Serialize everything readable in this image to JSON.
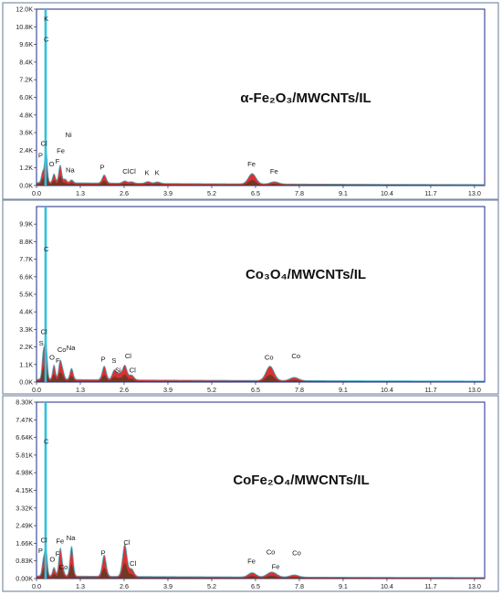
{
  "chart_data": [
    {
      "type": "area",
      "title": "α-Fe₂O₃/MWCNTs/IL",
      "xlim": [
        0,
        13.3
      ],
      "ylim": [
        0,
        12000
      ],
      "x_ticks": [
        0.0,
        1.3,
        2.6,
        3.9,
        5.2,
        6.5,
        7.8,
        9.1,
        10.4,
        11.7,
        13.0
      ],
      "x_tick_labels": [
        "0.0",
        "1.3",
        "2.6",
        "3.9",
        "5.2",
        "6.5",
        "7.8",
        "9.1",
        "10.4",
        "11.7",
        "13.0"
      ],
      "y_ticks": [
        0,
        1200,
        2400,
        3600,
        4800,
        6000,
        7200,
        8400,
        9600,
        10800,
        12000
      ],
      "y_tick_labels": [
        "0.0K",
        "1.2K",
        "2.4K",
        "3.6K",
        "4.8K",
        "6.0K",
        "7.2K",
        "8.4K",
        "9.6K",
        "10.8K",
        "12.0K"
      ],
      "baseline": 180,
      "background_peak": {
        "x": 0.27,
        "height": 12000
      },
      "peaks": [
        {
          "x": 0.18,
          "h": 700,
          "label": "P",
          "lx": 0.12,
          "ly": 1900
        },
        {
          "x": 0.28,
          "h": 2300,
          "label": "Cl",
          "lx": 0.22,
          "ly": 2700
        },
        {
          "x": 0.52,
          "h": 600,
          "label": "O",
          "lx": 0.45,
          "ly": 1300
        },
        {
          "x": 0.7,
          "h": 800,
          "label": "F",
          "lx": 0.62,
          "ly": 1500
        },
        {
          "x": 0.71,
          "h": 400,
          "label": "Fe",
          "lx": 0.72,
          "ly": 2200
        },
        {
          "x": 0.85,
          "h": 250,
          "label": "Ni",
          "lx": 0.95,
          "ly": 3300
        },
        {
          "x": 1.04,
          "h": 200,
          "label": "Na",
          "lx": 1.0,
          "ly": 900
        },
        {
          "x": 2.01,
          "h": 550,
          "label": "P",
          "lx": 1.95,
          "ly": 1100
        },
        {
          "x": 2.62,
          "h": 150,
          "label": "Cl",
          "lx": 2.65,
          "ly": 800
        },
        {
          "x": 2.82,
          "h": 100,
          "label": "Cl",
          "lx": 2.85,
          "ly": 800
        },
        {
          "x": 3.31,
          "h": 120,
          "label": "K",
          "lx": 3.28,
          "ly": 700
        },
        {
          "x": 3.59,
          "h": 100,
          "label": "K",
          "lx": 3.58,
          "ly": 700
        },
        {
          "x": 6.4,
          "h": 700,
          "label": "Fe",
          "lx": 6.38,
          "ly": 1300
        },
        {
          "x": 7.06,
          "h": 150,
          "label": "Fe",
          "lx": 7.05,
          "ly": 800
        }
      ],
      "extra_labels": [
        {
          "text": "K",
          "x": 0.29,
          "y": 11200
        },
        {
          "text": "C",
          "x": 0.29,
          "y": 9800
        }
      ]
    },
    {
      "type": "area",
      "title": "Co₃O₄/MWCNTs/IL",
      "xlim": [
        0,
        13.3
      ],
      "ylim": [
        0,
        11000
      ],
      "x_ticks": [
        0.0,
        1.3,
        2.6,
        3.9,
        5.2,
        6.5,
        7.8,
        9.1,
        10.4,
        11.7,
        13.0
      ],
      "x_tick_labels": [
        "0.0",
        "1.3",
        "2.6",
        "3.9",
        "5.2",
        "6.5",
        "7.8",
        "9.1",
        "10.4",
        "11.7",
        "13.0"
      ],
      "y_ticks": [
        0,
        1100,
        2200,
        3300,
        4400,
        5500,
        6600,
        7700,
        8800,
        9900
      ],
      "y_tick_labels": [
        "0.0K",
        "1.1K",
        "2.2K",
        "3.3K",
        "4.4K",
        "5.5K",
        "6.6K",
        "7.7K",
        "8.8K",
        "9.9K"
      ],
      "baseline": 150,
      "background_peak": {
        "x": 0.27,
        "height": 11000
      },
      "peaks": [
        {
          "x": 0.2,
          "h": 1600,
          "label": "S",
          "lx": 0.14,
          "ly": 2300
        },
        {
          "x": 0.28,
          "h": 2200,
          "label": "Cl",
          "lx": 0.22,
          "ly": 3000
        },
        {
          "x": 0.52,
          "h": 900,
          "label": "O",
          "lx": 0.46,
          "ly": 1400
        },
        {
          "x": 0.7,
          "h": 1100,
          "label": "F",
          "lx": 0.63,
          "ly": 1200
        },
        {
          "x": 0.78,
          "h": 500,
          "label": "Co",
          "lx": 0.75,
          "ly": 1900
        },
        {
          "x": 1.04,
          "h": 700,
          "label": "Na",
          "lx": 1.02,
          "ly": 2000
        },
        {
          "x": 2.01,
          "h": 850,
          "label": "P",
          "lx": 1.98,
          "ly": 1300
        },
        {
          "x": 2.31,
          "h": 600,
          "label": "S",
          "lx": 2.3,
          "ly": 1200
        },
        {
          "x": 2.46,
          "h": 350,
          "label": "Si",
          "lx": 2.42,
          "ly": 600
        },
        {
          "x": 2.62,
          "h": 900,
          "label": "Cl",
          "lx": 2.72,
          "ly": 1500
        },
        {
          "x": 2.82,
          "h": 300,
          "label": "Cl",
          "lx": 2.85,
          "ly": 600
        },
        {
          "x": 6.93,
          "h": 900,
          "label": "Co",
          "lx": 6.9,
          "ly": 1400
        },
        {
          "x": 7.65,
          "h": 200,
          "label": "Co",
          "lx": 7.7,
          "ly": 1500
        }
      ],
      "extra_labels": [
        {
          "text": "C",
          "x": 0.29,
          "y": 8200
        }
      ]
    },
    {
      "type": "area",
      "title": "CoFe₂O₄/MWCNTs/IL",
      "xlim": [
        0,
        13.3
      ],
      "ylim": [
        0,
        8300
      ],
      "x_ticks": [
        0.0,
        1.3,
        2.6,
        3.9,
        5.2,
        6.5,
        7.8,
        9.1,
        10.4,
        11.7,
        13.0
      ],
      "x_tick_labels": [
        "0.0",
        "1.3",
        "2.6",
        "3.9",
        "5.2",
        "6.5",
        "7.8",
        "9.1",
        "10.4",
        "11.7",
        "13.0"
      ],
      "y_ticks": [
        0,
        830,
        1660,
        2490,
        3320,
        4150,
        4980,
        5810,
        6640,
        7470,
        8300
      ],
      "y_tick_labels": [
        "0.00K",
        "0.83K",
        "1.66K",
        "2.49K",
        "3.32K",
        "4.15K",
        "4.98K",
        "5.81K",
        "6.64K",
        "7.47K",
        "8.30K"
      ],
      "baseline": 100,
      "background_peak": {
        "x": 0.27,
        "height": 8300
      },
      "peaks": [
        {
          "x": 0.2,
          "h": 700,
          "label": "P",
          "lx": 0.12,
          "ly": 1200
        },
        {
          "x": 0.28,
          "h": 1300,
          "label": "Cl",
          "lx": 0.22,
          "ly": 1700
        },
        {
          "x": 0.52,
          "h": 400,
          "label": "O",
          "lx": 0.47,
          "ly": 800
        },
        {
          "x": 0.7,
          "h": 800,
          "label": "F",
          "lx": 0.62,
          "ly": 1050
        },
        {
          "x": 0.71,
          "h": 450,
          "label": "Fe",
          "lx": 0.7,
          "ly": 1650
        },
        {
          "x": 0.78,
          "h": 300,
          "label": "Co",
          "lx": 0.8,
          "ly": 430
        },
        {
          "x": 1.04,
          "h": 1400,
          "label": "Na",
          "lx": 1.02,
          "ly": 1800
        },
        {
          "x": 2.01,
          "h": 1000,
          "label": "P",
          "lx": 1.98,
          "ly": 1100
        },
        {
          "x": 2.62,
          "h": 1500,
          "label": "Cl",
          "lx": 2.68,
          "ly": 1600
        },
        {
          "x": 2.82,
          "h": 350,
          "label": "Cl",
          "lx": 2.86,
          "ly": 600
        },
        {
          "x": 6.4,
          "h": 200,
          "label": "Fe",
          "lx": 6.38,
          "ly": 700
        },
        {
          "x": 6.93,
          "h": 150,
          "label": "Co",
          "lx": 6.95,
          "ly": 1150
        },
        {
          "x": 7.06,
          "h": 120,
          "label": "Fe",
          "lx": 7.1,
          "ly": 450
        },
        {
          "x": 7.65,
          "h": 100,
          "label": "Co",
          "lx": 7.72,
          "ly": 1100
        }
      ],
      "extra_labels": [
        {
          "text": "C",
          "x": 0.29,
          "y": 6350
        }
      ]
    }
  ],
  "colors": {
    "spectrum_fill": "#d81b1b",
    "spectrum_dark": "#1e3d1e",
    "spectrum_outline": "#43b4c9",
    "background_peak": "#2fc3e0",
    "frame": "#1b2a8a"
  }
}
